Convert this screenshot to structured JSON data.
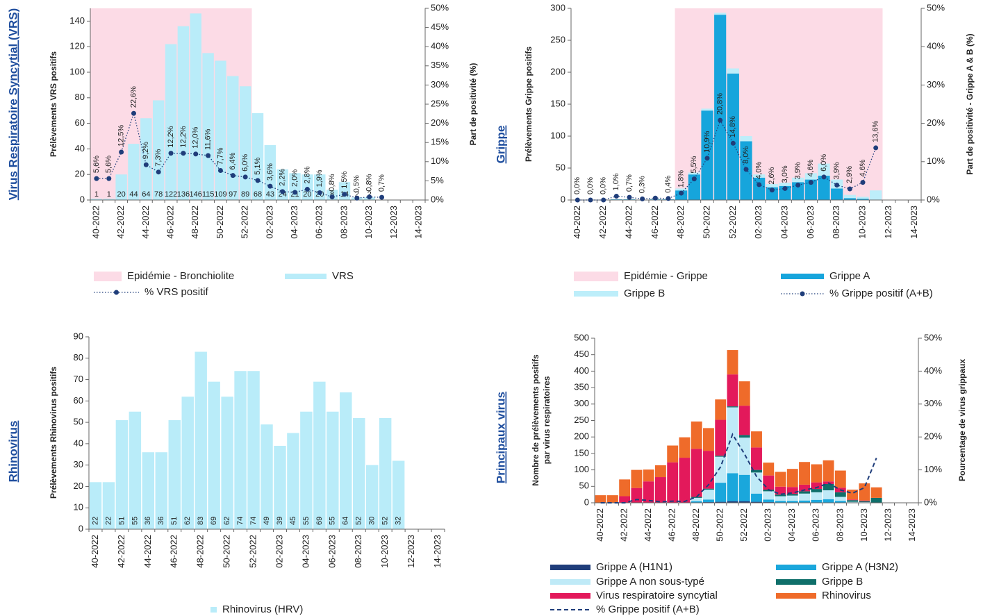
{
  "chart_data": [
    {
      "type": "bar",
      "title": "Virus Respiratoire Syncytial (VRS)",
      "ylabel": [
        "Prélèvements VRS positifs"
      ],
      "y2label": [
        "Part de positivité (%)"
      ],
      "categories": [
        "40-2022",
        null,
        "42-2022",
        null,
        "44-2022",
        null,
        "46-2022",
        null,
        "48-2022",
        null,
        "50-2022",
        null,
        "52-2022",
        null,
        "02-2023",
        null,
        "04-2023",
        null,
        "06-2023",
        null,
        "08-2023",
        null,
        "10-2023",
        null,
        "12-2023",
        null,
        "14-2023"
      ],
      "ylim": [
        0,
        150
      ],
      "yticks": [
        0,
        20,
        40,
        60,
        80,
        100,
        120,
        140
      ],
      "y2lim": [
        0,
        50
      ],
      "y2ticks": [
        {
          "value": 0,
          "label": "0%"
        },
        {
          "value": 5,
          "label": "5%"
        },
        {
          "value": 10,
          "label": "10%"
        },
        {
          "value": 15,
          "label": "15%"
        },
        {
          "value": 20,
          "label": "20%"
        },
        {
          "value": 25,
          "label": "25%"
        },
        {
          "value": 30,
          "label": "30%"
        },
        {
          "value": 35,
          "label": "35%"
        },
        {
          "value": 40,
          "label": "40%"
        },
        {
          "value": 45,
          "label": "45%"
        },
        {
          "value": 50,
          "label": "50%"
        }
      ],
      "stacked": false,
      "value_label_rotation": 0,
      "series": [
        {
          "name": "Epidémie - Bronchiolite",
          "type": "band",
          "color": "#fcdbe6",
          "values": [
            150,
            150,
            150,
            150,
            150,
            150,
            150,
            150,
            150,
            150,
            150,
            150,
            150,
            null,
            null,
            null,
            null,
            null,
            null,
            null,
            null,
            null,
            null,
            null,
            null,
            null,
            null
          ]
        },
        {
          "name": "VRS",
          "type": "bar",
          "color": "#b9ecf9",
          "show_values": true,
          "values": [
            1,
            1,
            20,
            44,
            64,
            78,
            122,
            136,
            146,
            115,
            109,
            97,
            89,
            68,
            43,
            24,
            21,
            20,
            20,
            8,
            14,
            2,
            2,
            null,
            null,
            null,
            null
          ]
        },
        {
          "name": "% VRS positif",
          "type": "line",
          "axis": "y2",
          "color": "#1f3d7a",
          "dash": "dotted",
          "marker": true,
          "values": [
            5.6,
            5.6,
            12.5,
            22.6,
            9.2,
            7.3,
            12.2,
            12.2,
            12.0,
            11.6,
            7.7,
            6.4,
            6.0,
            5.1,
            3.6,
            2.2,
            2.0,
            2.8,
            1.9,
            0.8,
            1.5,
            0.5,
            0.8,
            0.7,
            null,
            null,
            null
          ],
          "value_labels": [
            "5,6%",
            "5,6%",
            "12,5%",
            "22,6%",
            "9,2%",
            "7,3%",
            "12,2%",
            "12,2%",
            "12,0%",
            "11,6%",
            "7,7%",
            "6,4%",
            "6,0%",
            "5,1%",
            "3,6%",
            "2,2%",
            "2,0%",
            "2,8%",
            "1,9%",
            "0,8%",
            "1,5%",
            "0,5%",
            "0,8%",
            "0,7%",
            null,
            null,
            null
          ]
        }
      ]
    },
    {
      "type": "bar",
      "title": "Grippe",
      "ylabel": [
        "Prélèvements Grippe positifs"
      ],
      "y2label": [
        "Part de positivité - Grippe A & B (%)"
      ],
      "categories": [
        "40-2022",
        null,
        "42-2022",
        null,
        "44-2022",
        null,
        "46-2022",
        null,
        "48-2022",
        null,
        "50-2022",
        null,
        "52-2022",
        null,
        "02-2023",
        null,
        "04-2023",
        null,
        "06-2023",
        null,
        "08-2023",
        null,
        "10-2023",
        null,
        "12-2023",
        null,
        "14-2023"
      ],
      "ylim": [
        0,
        300
      ],
      "yticks": [
        0,
        50,
        100,
        150,
        200,
        250,
        300
      ],
      "y2lim": [
        0,
        50
      ],
      "y2ticks": [
        {
          "value": 0,
          "label": "0%"
        },
        {
          "value": 10,
          "label": "10%"
        },
        {
          "value": 20,
          "label": "20%"
        },
        {
          "value": 30,
          "label": "30%"
        },
        {
          "value": 40,
          "label": "40%"
        },
        {
          "value": 50,
          "label": "50%"
        }
      ],
      "stacked": true,
      "series": [
        {
          "name": "Epidémie - Grippe",
          "type": "band",
          "color": "#fcdbe6",
          "values": [
            null,
            null,
            null,
            null,
            null,
            null,
            null,
            null,
            300,
            300,
            300,
            300,
            300,
            300,
            300,
            300,
            300,
            300,
            300,
            300,
            300,
            300,
            300,
            300,
            null,
            null,
            null
          ]
        },
        {
          "name": "Grippe A",
          "type": "bar",
          "color": "#16a5dc",
          "values": [
            0,
            0,
            0,
            1,
            1,
            0,
            1,
            1,
            15,
            40,
            140,
            290,
            198,
            92,
            35,
            20,
            22,
            28,
            32,
            38,
            18,
            3,
            2,
            0,
            null,
            null,
            null
          ]
        },
        {
          "name": "Grippe B",
          "type": "bar",
          "color": "#bdeefa",
          "values": [
            0,
            0,
            0,
            0,
            0,
            0,
            0,
            0,
            3,
            3,
            3,
            3,
            8,
            8,
            5,
            5,
            5,
            7,
            10,
            19,
            14,
            5,
            3,
            15,
            null,
            null,
            null
          ]
        },
        {
          "name": "% Grippe positif (A+B)",
          "type": "line",
          "axis": "y2",
          "color": "#1f3d7a",
          "dash": "dotted",
          "marker": true,
          "values": [
            0.0,
            0.0,
            0.0,
            1.0,
            0.7,
            0.3,
            0.5,
            0.4,
            1.8,
            5.5,
            10.9,
            20.8,
            14.8,
            8.0,
            4.0,
            2.6,
            3.0,
            3.9,
            4.6,
            6.0,
            3.9,
            2.9,
            4.6,
            13.6,
            null,
            null,
            null
          ],
          "value_labels": [
            "0,0%",
            "0,0%",
            "0,0%",
            "1,0%",
            "0,7%",
            "0,3%",
            null,
            "0,4%",
            "1,8%",
            "5,5%",
            "10,9%",
            "20,8%",
            "14,8%",
            "8,0%",
            "4,0%",
            "2,6%",
            "3,0%",
            "3,9%",
            "4,6%",
            "6,0%",
            "3,9%",
            "2,9%",
            "4,6%",
            "13,6%",
            null,
            null,
            null
          ]
        }
      ]
    },
    {
      "type": "bar",
      "title": "Rhinovirus",
      "ylabel": [
        "Prélèvements Rhinovirus positifs"
      ],
      "categories": [
        "40-2022",
        null,
        "42-2022",
        null,
        "44-2022",
        null,
        "46-2022",
        null,
        "48-2022",
        null,
        "50-2022",
        null,
        "52-2022",
        null,
        "02-2023",
        null,
        "04-2023",
        null,
        "06-2023",
        null,
        "08-2023",
        null,
        "10-2023",
        null,
        "12-2023",
        null,
        "14-2023"
      ],
      "ylim": [
        0,
        90
      ],
      "yticks": [
        0,
        10,
        20,
        30,
        40,
        50,
        60,
        70,
        80,
        90
      ],
      "stacked": false,
      "value_label_rotation": -90,
      "series": [
        {
          "name": "Rhinovirus (HRV)",
          "type": "bar",
          "color": "#b9ecf9",
          "show_values": true,
          "values": [
            22,
            22,
            51,
            55,
            36,
            36,
            51,
            62,
            83,
            69,
            62,
            74,
            74,
            49,
            39,
            45,
            55,
            69,
            55,
            64,
            52,
            30,
            52,
            32,
            null,
            null,
            null
          ]
        }
      ]
    },
    {
      "type": "bar",
      "title": "Principaux virus",
      "ylabel": [
        "Nombre de prélèvements positifs",
        "par virus respiratoires"
      ],
      "y2label": [
        "Pourcentage de virus grippaux"
      ],
      "categories": [
        "40-2022",
        null,
        "42-2022",
        null,
        "44-2022",
        null,
        "46-2022",
        null,
        "48-2022",
        null,
        "50-2022",
        null,
        "52-2022",
        null,
        "02-2023",
        null,
        "04-2023",
        null,
        "06-2023",
        null,
        "08-2023",
        null,
        "10-2023",
        null,
        "12-2023",
        null,
        "14-2023"
      ],
      "ylim": [
        0,
        500
      ],
      "yticks": [
        0,
        50,
        100,
        150,
        200,
        250,
        300,
        350,
        400,
        450,
        500
      ],
      "y2lim": [
        0,
        50
      ],
      "y2ticks": [
        {
          "value": 0,
          "label": "0%"
        },
        {
          "value": 10,
          "label": "10%"
        },
        {
          "value": 20,
          "label": "20%"
        },
        {
          "value": 30,
          "label": "30%"
        },
        {
          "value": 40,
          "label": "40%"
        },
        {
          "value": 50,
          "label": "50%"
        }
      ],
      "stacked": true,
      "series": [
        {
          "name": "Grippe A (H1N1)",
          "type": "bar",
          "color": "#1f3d7a",
          "values": [
            0,
            0,
            0,
            0,
            0,
            0,
            0,
            0,
            1,
            2,
            3,
            5,
            5,
            3,
            2,
            1,
            1,
            1,
            1,
            1,
            1,
            0,
            0,
            0,
            null,
            null,
            null
          ]
        },
        {
          "name": "Grippe A (H3N2)",
          "type": "bar",
          "color": "#1aa7dc",
          "values": [
            0,
            0,
            0,
            0,
            0,
            0,
            0,
            0,
            4,
            8,
            58,
            85,
            80,
            25,
            8,
            5,
            5,
            6,
            8,
            10,
            5,
            1,
            1,
            0,
            null,
            null,
            null
          ]
        },
        {
          "name": "Grippe A non sous-typé",
          "type": "bar",
          "color": "#bfeaf7",
          "values": [
            0,
            0,
            0,
            1,
            1,
            0,
            1,
            1,
            10,
            30,
            79,
            200,
            113,
            64,
            25,
            14,
            16,
            21,
            23,
            27,
            12,
            2,
            1,
            0,
            null,
            null,
            null
          ]
        },
        {
          "name": "Grippe B",
          "type": "bar",
          "color": "#0f6f6a",
          "values": [
            0,
            0,
            0,
            0,
            0,
            0,
            0,
            0,
            3,
            3,
            3,
            3,
            8,
            8,
            5,
            5,
            5,
            7,
            10,
            19,
            14,
            5,
            3,
            15,
            null,
            null,
            null
          ]
        },
        {
          "name": "Virus respiratoire syncytial",
          "type": "bar",
          "color": "#e3195b",
          "values": [
            1,
            1,
            20,
            44,
            64,
            78,
            122,
            136,
            146,
            115,
            109,
            97,
            89,
            68,
            43,
            24,
            21,
            20,
            20,
            8,
            14,
            2,
            2,
            null,
            null,
            null,
            null
          ]
        },
        {
          "name": "Rhinovirus",
          "type": "bar",
          "color": "#ef6b2a",
          "values": [
            22,
            22,
            51,
            55,
            36,
            36,
            51,
            62,
            83,
            69,
            62,
            74,
            74,
            49,
            39,
            45,
            55,
            69,
            55,
            64,
            52,
            30,
            52,
            32,
            null,
            null,
            null
          ]
        },
        {
          "name": "% Grippe positif (A+B)",
          "type": "line",
          "axis": "y2",
          "color": "#1f3d7a",
          "dash": "dashed",
          "marker": false,
          "values": [
            0.0,
            0.0,
            0.0,
            1.0,
            0.7,
            0.3,
            0.5,
            0.4,
            1.8,
            5.5,
            10.9,
            20.8,
            14.8,
            8.0,
            4.0,
            2.6,
            3.0,
            3.9,
            4.6,
            6.0,
            3.9,
            2.9,
            4.6,
            13.6,
            null,
            null,
            null
          ]
        }
      ]
    }
  ]
}
